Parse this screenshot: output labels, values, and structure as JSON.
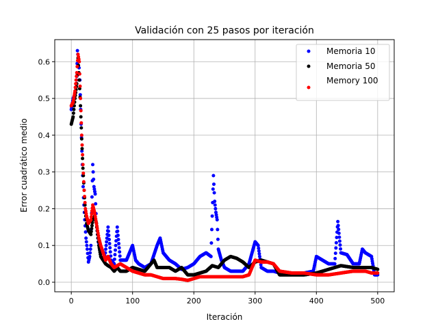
{
  "chart_data": {
    "type": "scatter",
    "title": "Validación con 25 pasos por iteración",
    "xlabel": "Iteración",
    "ylabel": "Error cuadrático medio",
    "xlim": [
      -27,
      527
    ],
    "ylim": [
      -0.026,
      0.66
    ],
    "xticks": [
      0,
      100,
      200,
      300,
      400,
      500
    ],
    "yticks": [
      0.0,
      0.1,
      0.2,
      0.3,
      0.4,
      0.5,
      0.6
    ],
    "grid": true,
    "legend_position": "top-right",
    "series": [
      {
        "name": "Memoria 10",
        "color": "#0000ff",
        "anchors": [
          [
            0,
            0.47
          ],
          [
            3,
            0.5
          ],
          [
            6,
            0.51
          ],
          [
            9,
            0.56
          ],
          [
            10,
            0.63
          ],
          [
            12,
            0.6
          ],
          [
            14,
            0.55
          ],
          [
            16,
            0.43
          ],
          [
            18,
            0.32
          ],
          [
            20,
            0.23
          ],
          [
            22,
            0.17
          ],
          [
            24,
            0.12
          ],
          [
            26,
            0.09
          ],
          [
            28,
            0.055
          ],
          [
            30,
            0.07
          ],
          [
            32,
            0.1
          ],
          [
            35,
            0.32
          ],
          [
            37,
            0.26
          ],
          [
            39,
            0.24
          ],
          [
            41,
            0.16
          ],
          [
            44,
            0.11
          ],
          [
            47,
            0.1
          ],
          [
            50,
            0.09
          ],
          [
            55,
            0.07
          ],
          [
            60,
            0.15
          ],
          [
            65,
            0.06
          ],
          [
            70,
            0.05
          ],
          [
            75,
            0.15
          ],
          [
            80,
            0.06
          ],
          [
            90,
            0.06
          ],
          [
            100,
            0.1
          ],
          [
            105,
            0.06
          ],
          [
            110,
            0.05
          ],
          [
            120,
            0.04
          ],
          [
            130,
            0.05
          ],
          [
            140,
            0.1
          ],
          [
            145,
            0.12
          ],
          [
            150,
            0.08
          ],
          [
            160,
            0.06
          ],
          [
            170,
            0.05
          ],
          [
            180,
            0.035
          ],
          [
            190,
            0.04
          ],
          [
            200,
            0.05
          ],
          [
            210,
            0.07
          ],
          [
            220,
            0.08
          ],
          [
            228,
            0.07
          ],
          [
            232,
            0.29
          ],
          [
            234,
            0.22
          ],
          [
            236,
            0.19
          ],
          [
            238,
            0.17
          ],
          [
            240,
            0.09
          ],
          [
            245,
            0.06
          ],
          [
            250,
            0.04
          ],
          [
            260,
            0.03
          ],
          [
            270,
            0.03
          ],
          [
            280,
            0.03
          ],
          [
            290,
            0.05
          ],
          [
            300,
            0.11
          ],
          [
            305,
            0.1
          ],
          [
            310,
            0.04
          ],
          [
            320,
            0.03
          ],
          [
            330,
            0.03
          ],
          [
            340,
            0.025
          ],
          [
            360,
            0.025
          ],
          [
            380,
            0.025
          ],
          [
            395,
            0.03
          ],
          [
            400,
            0.07
          ],
          [
            410,
            0.06
          ],
          [
            420,
            0.05
          ],
          [
            430,
            0.05
          ],
          [
            435,
            0.165
          ],
          [
            440,
            0.08
          ],
          [
            450,
            0.075
          ],
          [
            460,
            0.05
          ],
          [
            470,
            0.05
          ],
          [
            475,
            0.09
          ],
          [
            480,
            0.08
          ],
          [
            490,
            0.07
          ],
          [
            495,
            0.02
          ],
          [
            500,
            0.02
          ]
        ]
      },
      {
        "name": "Memoria 50",
        "color": "#000000",
        "anchors": [
          [
            0,
            0.43
          ],
          [
            3,
            0.45
          ],
          [
            6,
            0.5
          ],
          [
            9,
            0.54
          ],
          [
            11,
            0.61
          ],
          [
            13,
            0.55
          ],
          [
            15,
            0.48
          ],
          [
            17,
            0.39
          ],
          [
            19,
            0.31
          ],
          [
            21,
            0.25
          ],
          [
            23,
            0.19
          ],
          [
            25,
            0.16
          ],
          [
            28,
            0.14
          ],
          [
            32,
            0.13
          ],
          [
            35,
            0.17
          ],
          [
            38,
            0.18
          ],
          [
            41,
            0.16
          ],
          [
            45,
            0.1
          ],
          [
            48,
            0.07
          ],
          [
            52,
            0.06
          ],
          [
            56,
            0.05
          ],
          [
            60,
            0.045
          ],
          [
            65,
            0.04
          ],
          [
            70,
            0.03
          ],
          [
            75,
            0.04
          ],
          [
            80,
            0.03
          ],
          [
            90,
            0.03
          ],
          [
            100,
            0.04
          ],
          [
            110,
            0.035
          ],
          [
            120,
            0.03
          ],
          [
            130,
            0.05
          ],
          [
            135,
            0.06
          ],
          [
            140,
            0.04
          ],
          [
            150,
            0.04
          ],
          [
            160,
            0.04
          ],
          [
            170,
            0.03
          ],
          [
            180,
            0.04
          ],
          [
            190,
            0.02
          ],
          [
            200,
            0.02
          ],
          [
            210,
            0.025
          ],
          [
            220,
            0.03
          ],
          [
            230,
            0.045
          ],
          [
            240,
            0.04
          ],
          [
            250,
            0.06
          ],
          [
            260,
            0.07
          ],
          [
            270,
            0.065
          ],
          [
            280,
            0.055
          ],
          [
            290,
            0.04
          ],
          [
            300,
            0.055
          ],
          [
            310,
            0.06
          ],
          [
            320,
            0.055
          ],
          [
            330,
            0.05
          ],
          [
            340,
            0.02
          ],
          [
            360,
            0.02
          ],
          [
            380,
            0.02
          ],
          [
            400,
            0.025
          ],
          [
            410,
            0.03
          ],
          [
            420,
            0.035
          ],
          [
            440,
            0.045
          ],
          [
            460,
            0.04
          ],
          [
            480,
            0.04
          ],
          [
            490,
            0.04
          ],
          [
            500,
            0.035
          ]
        ]
      },
      {
        "name": "Memory 100",
        "color": "#ff0000",
        "anchors": [
          [
            0,
            0.48
          ],
          [
            3,
            0.49
          ],
          [
            6,
            0.52
          ],
          [
            9,
            0.57
          ],
          [
            11,
            0.62
          ],
          [
            13,
            0.6
          ],
          [
            15,
            0.5
          ],
          [
            17,
            0.4
          ],
          [
            19,
            0.32
          ],
          [
            21,
            0.25
          ],
          [
            23,
            0.2
          ],
          [
            25,
            0.18
          ],
          [
            28,
            0.16
          ],
          [
            32,
            0.17
          ],
          [
            35,
            0.21
          ],
          [
            38,
            0.19
          ],
          [
            41,
            0.16
          ],
          [
            45,
            0.12
          ],
          [
            48,
            0.1
          ],
          [
            52,
            0.08
          ],
          [
            56,
            0.06
          ],
          [
            60,
            0.07
          ],
          [
            65,
            0.05
          ],
          [
            70,
            0.04
          ],
          [
            80,
            0.05
          ],
          [
            90,
            0.04
          ],
          [
            100,
            0.03
          ],
          [
            110,
            0.025
          ],
          [
            120,
            0.02
          ],
          [
            130,
            0.02
          ],
          [
            140,
            0.015
          ],
          [
            150,
            0.01
          ],
          [
            160,
            0.01
          ],
          [
            170,
            0.01
          ],
          [
            180,
            0.008
          ],
          [
            190,
            0.005
          ],
          [
            200,
            0.01
          ],
          [
            210,
            0.015
          ],
          [
            220,
            0.015
          ],
          [
            240,
            0.015
          ],
          [
            260,
            0.015
          ],
          [
            280,
            0.015
          ],
          [
            290,
            0.02
          ],
          [
            300,
            0.06
          ],
          [
            310,
            0.055
          ],
          [
            320,
            0.055
          ],
          [
            330,
            0.05
          ],
          [
            340,
            0.03
          ],
          [
            360,
            0.025
          ],
          [
            380,
            0.025
          ],
          [
            400,
            0.02
          ],
          [
            420,
            0.02
          ],
          [
            440,
            0.025
          ],
          [
            460,
            0.03
          ],
          [
            480,
            0.03
          ],
          [
            490,
            0.025
          ],
          [
            500,
            0.025
          ]
        ]
      }
    ]
  }
}
